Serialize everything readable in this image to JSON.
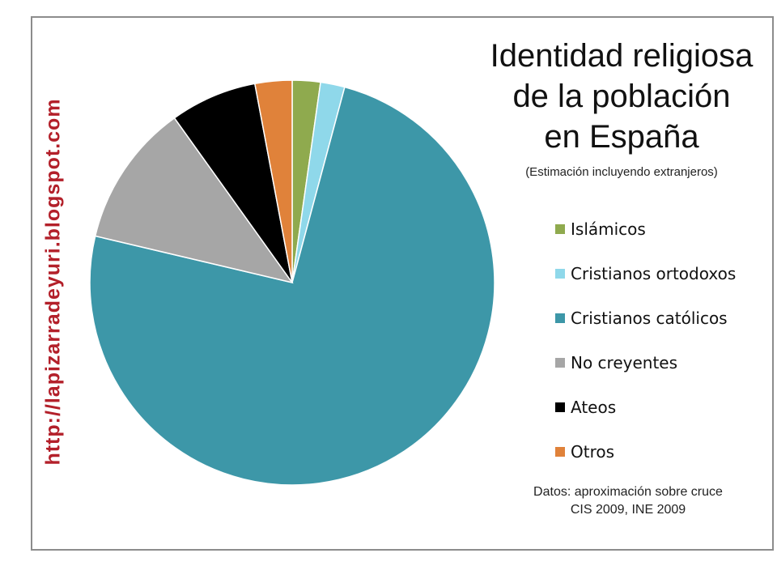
{
  "watermark": "http://lapizarradeyuri.blogspot.com",
  "chart_data": {
    "type": "pie",
    "title_lines": [
      "Identidad religiosa",
      "de la población",
      "en España"
    ],
    "subtitle": "(Estimación incluyendo extranjeros)",
    "legend_placement": "right",
    "slices": [
      {
        "label": "Islámicos",
        "value": 2.2,
        "color": "#8faa4e"
      },
      {
        "label": "Cristianos ortodoxos",
        "value": 1.9,
        "color": "#8fd8ea"
      },
      {
        "label": "Cristianos católicos",
        "value": 73.1,
        "color": "#3d97a8"
      },
      {
        "label": "No creyentes",
        "value": 11.2,
        "color": "#a6a6a6"
      },
      {
        "label": "Ateos",
        "value": 6.8,
        "color": "#000000"
      },
      {
        "label": "Otros",
        "value": 2.9,
        "color": "#e0823a"
      }
    ]
  },
  "source_lines": [
    "Datos: aproximación sobre cruce",
    "CIS 2009, INE 2009"
  ]
}
